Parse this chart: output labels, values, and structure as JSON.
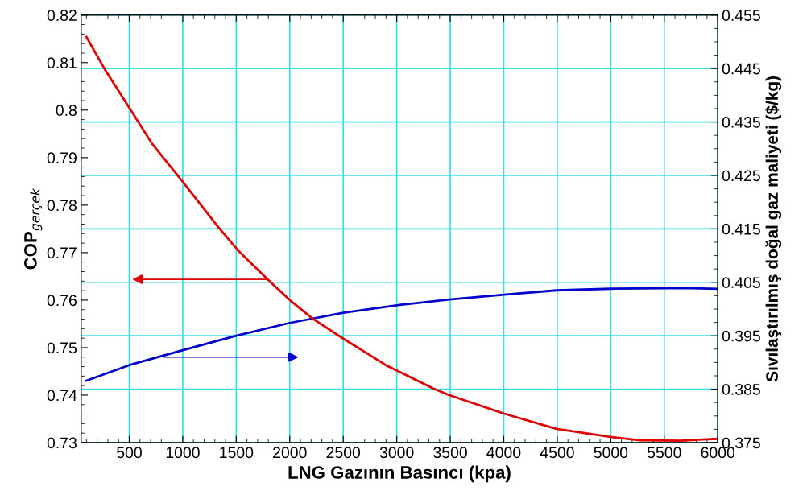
{
  "chart_data": {
    "type": "line",
    "xlabel": "LNG Gazının Basıncı (kpa)",
    "ylabel": "COP$_{gerçek}$",
    "y2label": "Sıvılaştırılmış doğal gaz maliyeti ($/kg)",
    "xlim": [
      50,
      6000
    ],
    "xticks": [
      500,
      1000,
      1500,
      2000,
      2500,
      3000,
      3500,
      4000,
      4500,
      5000,
      5500,
      6000
    ],
    "ylim": [
      0.73,
      0.82
    ],
    "yticks": [
      0.73,
      0.74,
      0.75,
      0.76,
      0.77,
      0.78,
      0.79,
      0.8,
      0.81,
      0.82
    ],
    "y2lim": [
      0.375,
      0.455
    ],
    "y2ticks": [
      0.375,
      0.385,
      0.395,
      0.405,
      0.415,
      0.425,
      0.435,
      0.445,
      0.455
    ],
    "grid": true,
    "legend": false,
    "marker": "none",
    "line_style": "solid",
    "series": [
      {
        "color": "#e00000",
        "x": [
          100,
          274,
          500,
          711,
          1000,
          1335,
          1515,
          1816,
          2011,
          2214,
          2500,
          2793,
          2891,
          3117,
          3342,
          3492,
          4004,
          4493,
          4997,
          5274,
          5650,
          5898,
          6000
        ],
        "values": [
          0.8154,
          0.8085,
          0.8005,
          0.793,
          0.7849,
          0.7753,
          0.7705,
          0.7639,
          0.7598,
          0.7561,
          0.7519,
          0.7478,
          0.7464,
          0.7439,
          0.7414,
          0.74,
          0.7361,
          0.7329,
          0.7312,
          0.7305,
          0.7304,
          0.7307,
          0.7308
        ]
      },
      {
        "color": "#0000cc",
        "axis": "y2",
        "x": [
          100,
          500,
          1000,
          1500,
          2000,
          2500,
          3041,
          3492,
          4004,
          4493,
          4997,
          5500,
          5750,
          6000
        ],
        "values": [
          0.3866,
          0.3895,
          0.3923,
          0.395,
          0.3974,
          0.3993,
          0.4008,
          0.4018,
          0.4027,
          0.4035,
          0.4038,
          0.4039,
          0.4039,
          0.4038
        ]
      }
    ]
  }
}
